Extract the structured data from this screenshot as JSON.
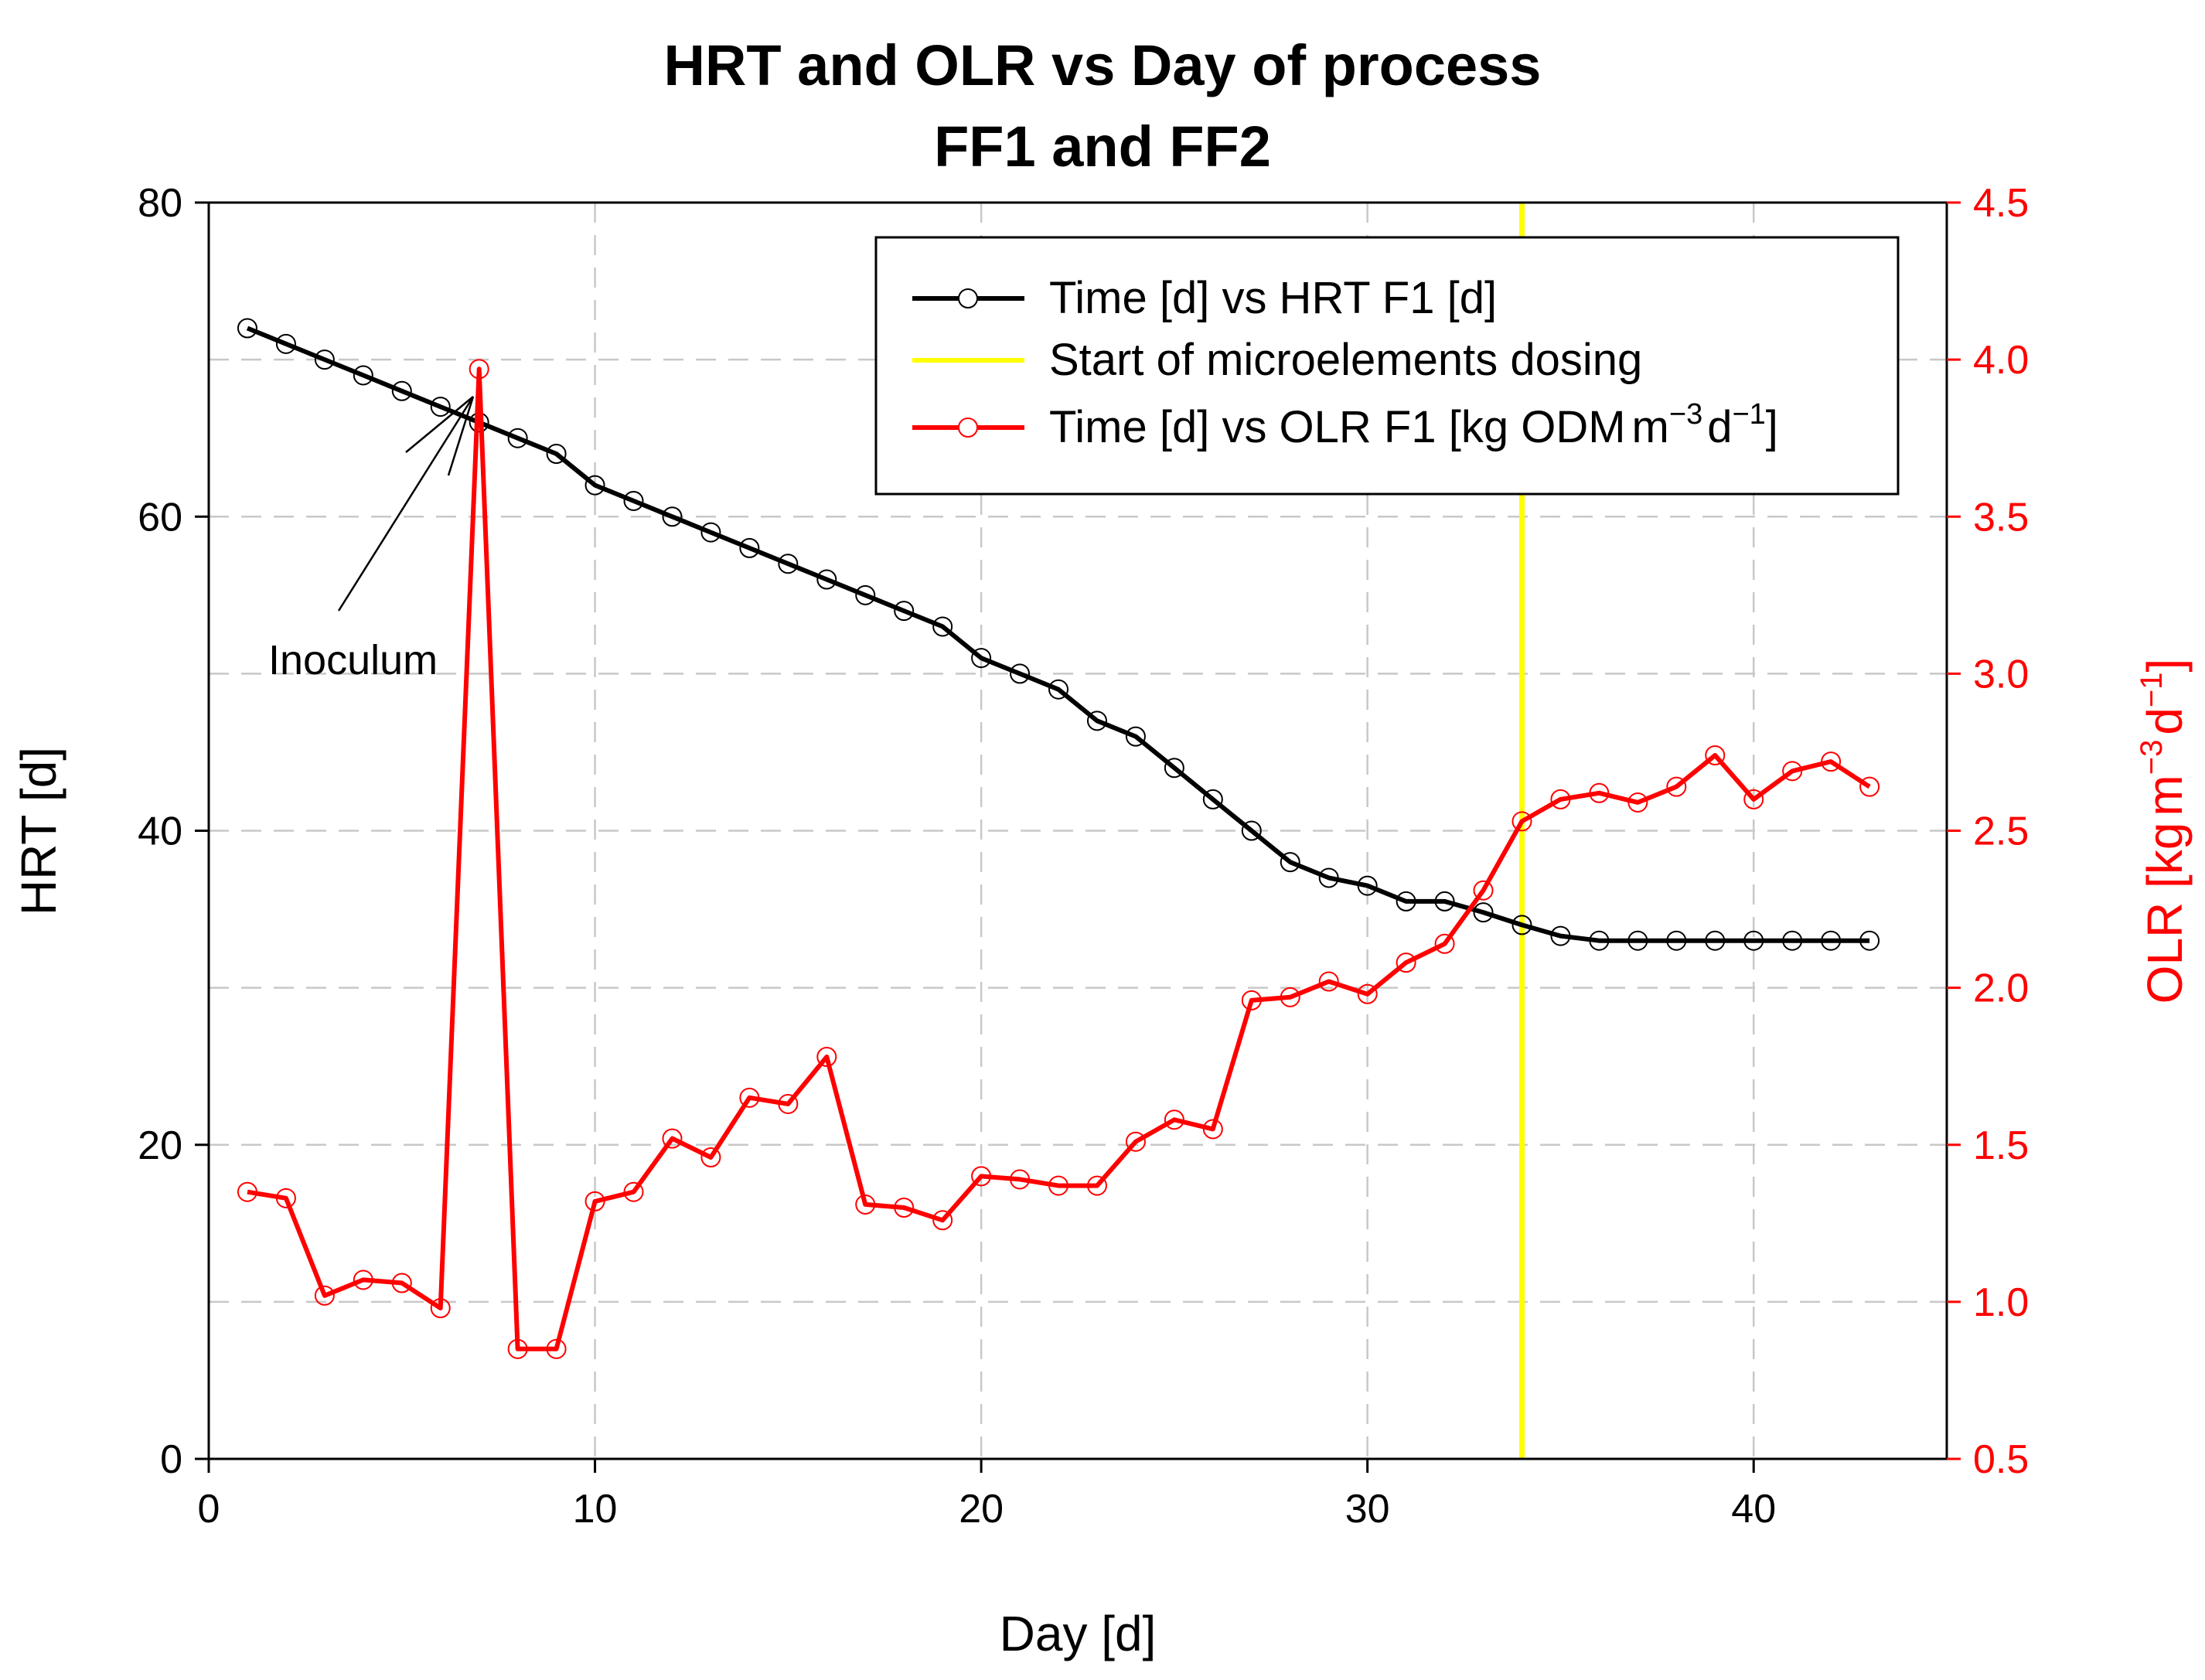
{
  "chart_data": {
    "type": "line",
    "title": "HRT and OLR vs Day of process",
    "subtitle": "FF1 and FF2",
    "xlabel": "Day [d]",
    "ylabel": "HRT [d]",
    "y2label": {
      "prefix": "OLR [kg",
      "mid1": "m",
      "sup1": "−3",
      "mid2": "d",
      "sup2": "−1",
      "suffix": "]"
    },
    "xlim": [
      0,
      45
    ],
    "ylim": [
      0,
      80
    ],
    "y2lim": [
      0.5,
      4.5
    ],
    "xticks": [
      "0",
      "10",
      "20",
      "30",
      "40"
    ],
    "yticks": [
      "0",
      "20",
      "40",
      "60",
      "80"
    ],
    "y2ticks": [
      "0.5",
      "1.0",
      "1.5",
      "2.0",
      "2.5",
      "3.0",
      "3.5",
      "4.0",
      "4.5"
    ],
    "grid": true,
    "legend_position": "top-right",
    "legend": {
      "hrt": "Time [d] vs HRT F1 [d]",
      "dosing": "Start of microelements dosing",
      "olr": {
        "prefix": "Time [d] vs OLR F1 [kg ODM",
        "mid1": "m",
        "sup1": "−3",
        "mid2": "d",
        "sup2": "−1",
        "suffix": "]"
      }
    },
    "annotation": {
      "text": "Inoculum",
      "target_day": 7
    },
    "vertical_line": {
      "x": 34,
      "color": "#ffff00",
      "name": "Start of microelements dosing"
    },
    "series": [
      {
        "name": "Time [d] vs HRT F1 [d]",
        "axis": "left",
        "color": "#000000",
        "x": [
          1,
          2,
          3,
          4,
          5,
          6,
          7,
          8,
          9,
          10,
          11,
          12,
          13,
          14,
          15,
          16,
          17,
          18,
          19,
          20,
          21,
          22,
          23,
          24,
          25,
          26,
          27,
          28,
          29,
          30,
          31,
          32,
          33,
          34,
          35,
          36,
          37,
          38,
          39,
          40,
          41,
          42,
          43
        ],
        "values": [
          72,
          71,
          70,
          69,
          68,
          67,
          66,
          65,
          64,
          62,
          61,
          60,
          59,
          58,
          57,
          56,
          55,
          54,
          53,
          51,
          50,
          49,
          47,
          46,
          44,
          42,
          40,
          38,
          37,
          36.5,
          35.5,
          35.5,
          34.8,
          34,
          33.3,
          33,
          33,
          33,
          33,
          33,
          33,
          33,
          33
        ]
      },
      {
        "name": "Time [d] vs OLR F1 [kg ODM m-3 d-1]",
        "axis": "right",
        "color": "#ff0000",
        "x": [
          1,
          2,
          3,
          4,
          5,
          6,
          7,
          8,
          9,
          10,
          11,
          12,
          13,
          14,
          15,
          16,
          17,
          18,
          19,
          20,
          21,
          22,
          23,
          24,
          25,
          26,
          27,
          28,
          29,
          30,
          31,
          32,
          33,
          34,
          35,
          36,
          37,
          38,
          39,
          40,
          41,
          42,
          43
        ],
        "values": [
          1.35,
          1.33,
          1.02,
          1.07,
          1.06,
          0.98,
          3.97,
          0.85,
          0.85,
          1.32,
          1.35,
          1.52,
          1.46,
          1.65,
          1.63,
          1.78,
          1.31,
          1.3,
          1.26,
          1.4,
          1.39,
          1.37,
          1.37,
          1.51,
          1.58,
          1.55,
          1.96,
          1.97,
          2.02,
          1.98,
          2.08,
          2.14,
          2.31,
          2.53,
          2.6,
          2.62,
          2.59,
          2.64,
          2.74,
          2.6,
          2.69,
          2.72,
          2.64
        ]
      }
    ]
  },
  "colors": {
    "grid": "#c8c8c8",
    "axis": "#000000",
    "right_axis": "#ff0000",
    "dosing": "#ffff00"
  }
}
